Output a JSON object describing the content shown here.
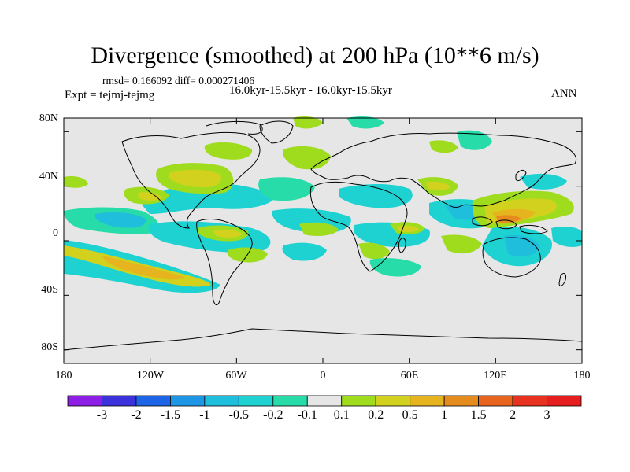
{
  "title": "Divergence (smoothed) at 200 hPa (10**6 m/s)",
  "stats": "rmsd= 0.166092 diff= 0.000271406",
  "subtitle": "16.0kyr-15.5kyr - 16.0kyr-15.5kyr",
  "expt": "Expt = tejmj-tejmg",
  "season": "ANN",
  "axes": {
    "lat_ticks": [
      "80N",
      "40N",
      "0",
      "40S",
      "80S"
    ],
    "lon_ticks": [
      "180",
      "120W",
      "60W",
      "0",
      "60E",
      "120E",
      "180"
    ]
  },
  "colorbar": {
    "labels": [
      "-3",
      "-2",
      "-1.5",
      "-1",
      "-0.5",
      "-0.2",
      "-0.1",
      "0.1",
      "0.2",
      "0.5",
      "1",
      "1.5",
      "2",
      "3"
    ],
    "colors": [
      "#8c1ee6",
      "#3c32dc",
      "#1e64e6",
      "#1e96e6",
      "#1ebedc",
      "#1ed2d2",
      "#28dcaa",
      "#e6e6e6",
      "#a0dc1e",
      "#d2d21e",
      "#e6b41e",
      "#e68c1e",
      "#e6641e",
      "#e6321e",
      "#e61e1e"
    ]
  },
  "chart_data": {
    "type": "heatmap",
    "title": "Divergence (smoothed) at 200 hPa (10**6 m/s)",
    "variable": "Divergence (smoothed) at 200 hPa",
    "units": "10**6 m/s",
    "contour_levels": [
      -3,
      -2,
      -1.5,
      -1,
      -0.5,
      -0.2,
      -0.1,
      0.1,
      0.2,
      0.5,
      1,
      1.5,
      2,
      3
    ],
    "lon_range": [
      -180,
      180
    ],
    "lat_range": [
      -90,
      90
    ],
    "features": [
      {
        "lon": -150,
        "lat": -15,
        "sign": "positive",
        "peak": 1.0
      },
      {
        "lon": -170,
        "lat": -25,
        "sign": "negative",
        "peak": -0.5
      },
      {
        "lon": -90,
        "lat": 40,
        "sign": "positive",
        "peak": 0.5
      },
      {
        "lon": -110,
        "lat": 15,
        "sign": "negative",
        "peak": -0.5
      },
      {
        "lon": -70,
        "lat": 0,
        "sign": "positive",
        "peak": 0.5
      },
      {
        "lon": -40,
        "lat": 0,
        "sign": "negative",
        "peak": -0.5
      },
      {
        "lon": 20,
        "lat": 5,
        "sign": "negative",
        "peak": -0.5
      },
      {
        "lon": 40,
        "lat": -5,
        "sign": "positive",
        "peak": 0.5
      },
      {
        "lon": 60,
        "lat": 25,
        "sign": "positive",
        "peak": 0.5
      },
      {
        "lon": 90,
        "lat": 0,
        "sign": "negative",
        "peak": -0.5
      },
      {
        "lon": 130,
        "lat": 5,
        "sign": "positive",
        "peak": 1.0
      },
      {
        "lon": 160,
        "lat": -20,
        "sign": "negative",
        "peak": -0.5
      }
    ]
  }
}
